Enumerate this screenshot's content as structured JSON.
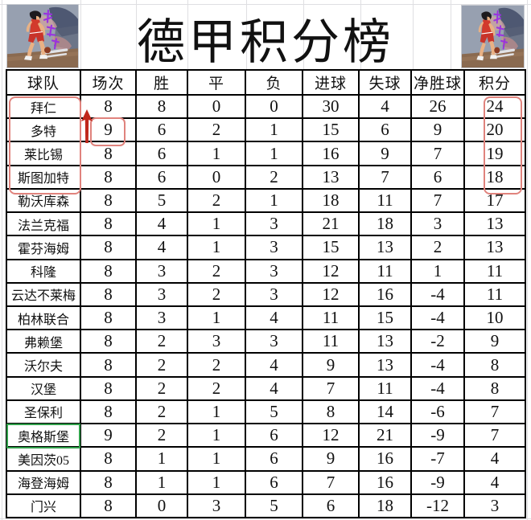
{
  "title": "德甲积分榜",
  "table": {
    "headers": [
      "球队",
      "场次",
      "胜",
      "平",
      "负",
      "进球",
      "失球",
      "净胜球",
      "积分"
    ],
    "rows": [
      [
        "拜仁",
        "8",
        "8",
        "0",
        "0",
        "30",
        "4",
        "26",
        "24"
      ],
      [
        "多特",
        "9",
        "6",
        "2",
        "1",
        "15",
        "6",
        "9",
        "20"
      ],
      [
        "莱比锡",
        "8",
        "6",
        "1",
        "1",
        "16",
        "9",
        "7",
        "19"
      ],
      [
        "斯图加特",
        "8",
        "6",
        "0",
        "2",
        "13",
        "7",
        "6",
        "18"
      ],
      [
        "勒沃库森",
        "8",
        "5",
        "2",
        "1",
        "18",
        "11",
        "7",
        "17"
      ],
      [
        "法兰克福",
        "8",
        "4",
        "1",
        "3",
        "21",
        "18",
        "3",
        "13"
      ],
      [
        "霍芬海姆",
        "8",
        "4",
        "1",
        "3",
        "15",
        "13",
        "2",
        "13"
      ],
      [
        "科隆",
        "8",
        "3",
        "2",
        "3",
        "12",
        "11",
        "1",
        "11"
      ],
      [
        "云达不莱梅",
        "8",
        "3",
        "2",
        "3",
        "12",
        "16",
        "-4",
        "11"
      ],
      [
        "柏林联合",
        "8",
        "3",
        "1",
        "4",
        "11",
        "15",
        "-4",
        "10"
      ],
      [
        "弗赖堡",
        "8",
        "2",
        "3",
        "3",
        "11",
        "13",
        "-2",
        "9"
      ],
      [
        "沃尔夫",
        "8",
        "2",
        "2",
        "4",
        "9",
        "13",
        "-4",
        "8"
      ],
      [
        "汉堡",
        "8",
        "2",
        "2",
        "4",
        "7",
        "11",
        "-4",
        "8"
      ],
      [
        "圣保利",
        "8",
        "2",
        "1",
        "5",
        "8",
        "14",
        "-6",
        "7"
      ],
      [
        "奥格斯堡",
        "9",
        "2",
        "1",
        "6",
        "12",
        "21",
        "-9",
        "7"
      ],
      [
        "美因茨05",
        "8",
        "1",
        "1",
        "6",
        "9",
        "16",
        "-7",
        "4"
      ],
      [
        "海登海姆",
        "8",
        "1",
        "1",
        "6",
        "7",
        "16",
        "-9",
        "4"
      ],
      [
        "门兴",
        "8",
        "0",
        "3",
        "5",
        "6",
        "18",
        "-12",
        "3"
      ]
    ]
  },
  "annotations": {
    "boxed_value": "9",
    "selected_cell_team": "奥格斯堡"
  },
  "colors": {
    "annotation_red": "#e0837d",
    "arrow_red": "#c0271b",
    "selection_green": "#2f9e49",
    "table_line": "#000000",
    "background": "#ffffff"
  }
}
